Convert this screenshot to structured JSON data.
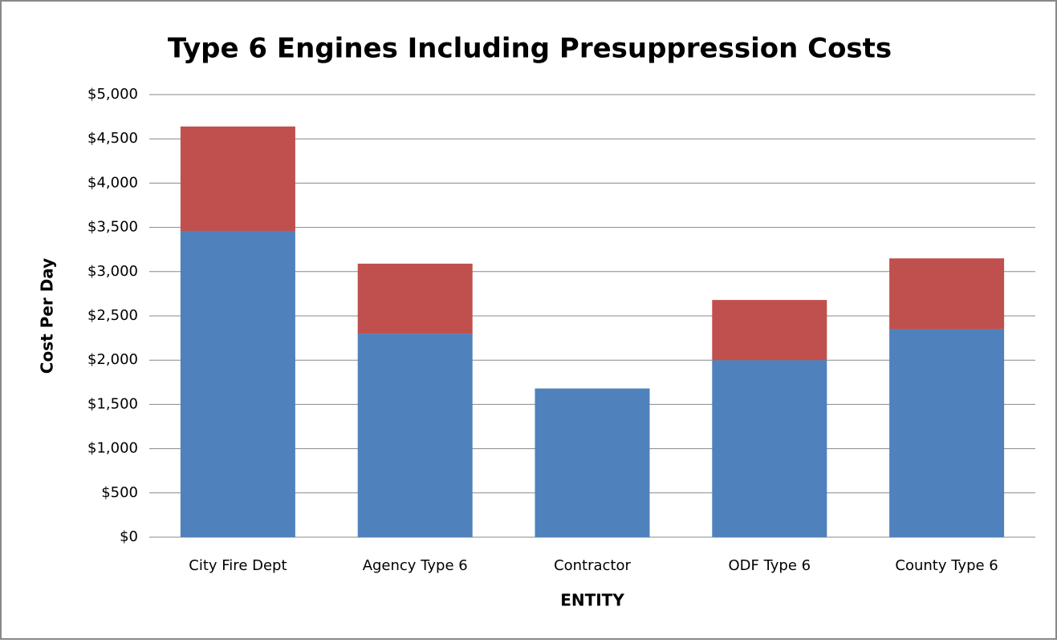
{
  "chart_data": {
    "type": "stacked_bar",
    "title": "Type 6 Engines Including Presuppression Costs",
    "x_label": "ENTITY",
    "y_label": "Cost Per Day",
    "categories": [
      "City Fire Dept",
      "Agency Type 6",
      "Contractor",
      "ODF Type 6",
      "County Type 6"
    ],
    "series": [
      {
        "color": "#4f81bd",
        "values": [
          3460,
          2300,
          1680,
          2000,
          2350
        ]
      },
      {
        "color": "#c0504d",
        "values": [
          1180,
          790,
          0,
          680,
          800
        ]
      }
    ],
    "ylim": [
      0,
      5000
    ],
    "yticks": [
      {
        "value": 0,
        "label": "$0"
      },
      {
        "value": 500,
        "label": "$500"
      },
      {
        "value": 1000,
        "label": "$1,000"
      },
      {
        "value": 1500,
        "label": "$1,500"
      },
      {
        "value": 2000,
        "label": "$2,000"
      },
      {
        "value": 2500,
        "label": "$2,500"
      },
      {
        "value": 3000,
        "label": "$3,000"
      },
      {
        "value": 3500,
        "label": "$3,500"
      },
      {
        "value": 4000,
        "label": "$4,000"
      },
      {
        "value": 4500,
        "label": "$4,500"
      },
      {
        "value": 5000,
        "label": "$5,000"
      }
    ],
    "grid": true
  }
}
